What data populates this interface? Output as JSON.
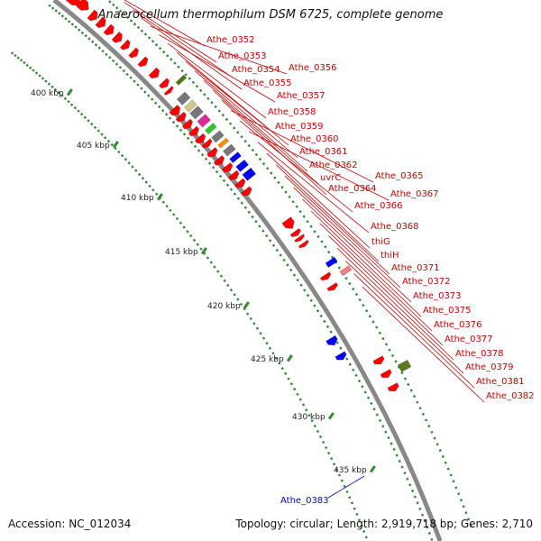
{
  "title": "Anaerocellum thermophilum DSM 6725, complete genome",
  "accession": "Accession: NC_012034",
  "summary": "Topology: circular; Length: 2,919,718 bp; Genes: 2,710",
  "colors": {
    "backbone": "#888888",
    "tick": "#2e8b2e",
    "feature_label": "#cc0000",
    "highlight_label": "#0000cc"
  },
  "scale_ticks": [
    "400 kbp",
    "405 kbp",
    "410 kbp",
    "415 kbp",
    "420 kbp",
    "425 kbp",
    "430 kbp",
    "435 kbp"
  ],
  "gene_labels": [
    "Athe_0352",
    "Athe_0353",
    "Athe_0354",
    "Athe_0355",
    "Athe_0356",
    "Athe_0357",
    "Athe_0358",
    "Athe_0359",
    "Athe_0360",
    "Athe_0361",
    "Athe_0362",
    "uvrC",
    "Athe_0364",
    "Athe_0365",
    "Athe_0366",
    "Athe_0367",
    "Athe_0368",
    "thiG",
    "thiH",
    "Athe_0371",
    "Athe_0372",
    "Athe_0373",
    "Athe_0375",
    "Athe_0376",
    "Athe_0377",
    "Athe_0378",
    "Athe_0379",
    "Athe_0381",
    "Athe_0382"
  ],
  "highlight_label": "Athe_0383"
}
